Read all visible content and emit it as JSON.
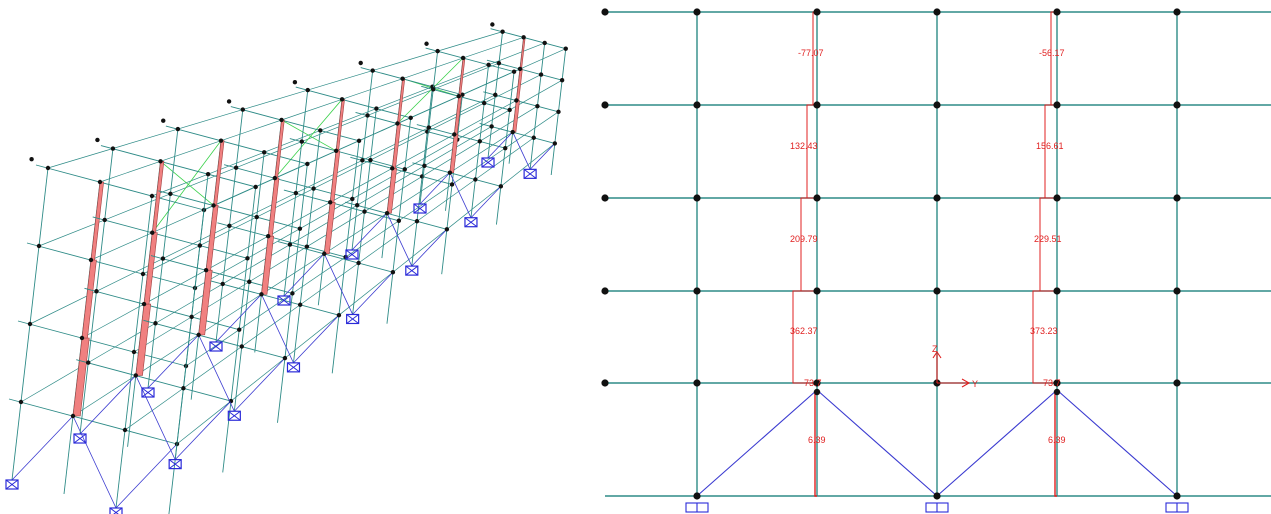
{
  "colors": {
    "frame": "#2e8b87",
    "node": "#111111",
    "brace": "#3a3ad0",
    "brace_light": "#39d14a",
    "diagram_fill": "#f08080",
    "diagram_line": "#e02020",
    "support": "#2a2ad8",
    "axis": "#e02020"
  },
  "elevation": {
    "axis": {
      "z_label": "Z",
      "y_label": "Y"
    },
    "force_labels": [
      {
        "id": "c1-s5",
        "text": "-77.07"
      },
      {
        "id": "c2-s5",
        "text": "-56.17"
      },
      {
        "id": "c1-s4",
        "text": "132.43"
      },
      {
        "id": "c2-s4",
        "text": "156.61"
      },
      {
        "id": "c1-s3",
        "text": "209.79"
      },
      {
        "id": "c2-s3",
        "text": "229.51"
      },
      {
        "id": "c1-s2",
        "text": "362.37"
      },
      {
        "id": "c2-s2",
        "text": "373.23"
      },
      {
        "id": "c1-s1",
        "text": "73.7"
      },
      {
        "id": "c2-s1",
        "text": "73.7"
      },
      {
        "id": "c1-g",
        "text": "6.39"
      },
      {
        "id": "c2-g",
        "text": "6.39"
      }
    ]
  }
}
